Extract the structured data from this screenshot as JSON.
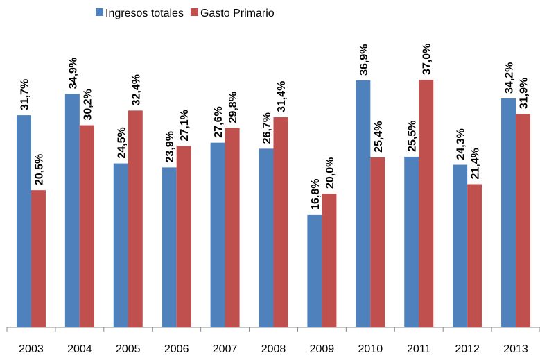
{
  "chart_data": {
    "type": "bar",
    "categories": [
      "2003",
      "2004",
      "2005",
      "2006",
      "2007",
      "2008",
      "2009",
      "2010",
      "2011",
      "2012",
      "2013"
    ],
    "series": [
      {
        "name": "Ingresos totales",
        "color": "#4f81bd",
        "values": [
          31.7,
          34.9,
          24.5,
          23.9,
          27.6,
          26.7,
          16.8,
          36.9,
          25.5,
          24.3,
          34.2
        ],
        "value_labels": [
          "31,7%",
          "34,9%",
          "24,5%",
          "23,9%",
          "27,6%",
          "26,7%",
          "16,8%",
          "36,9%",
          "25,5%",
          "24,3%",
          "34,2%"
        ]
      },
      {
        "name": "Gasto Primario",
        "color": "#c0504d",
        "values": [
          20.5,
          30.2,
          32.4,
          27.1,
          29.8,
          31.4,
          20.0,
          25.4,
          37.0,
          21.4,
          31.9
        ],
        "value_labels": [
          "20,5%",
          "30,2%",
          "32,4%",
          "27,1%",
          "29,8%",
          "31,4%",
          "20,0%",
          "25,4%",
          "37,0%",
          "21,4%",
          "31,9%"
        ]
      }
    ],
    "legend": "top"
  }
}
